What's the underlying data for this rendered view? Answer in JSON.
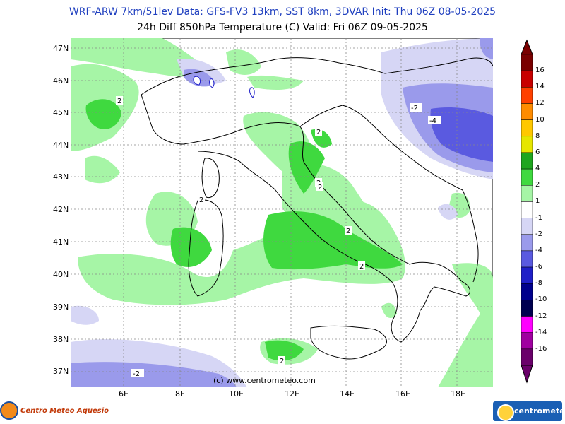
{
  "header": {
    "line1": "WRF-ARW 7km/51lev   Data: GFS-FV3 13km, SST 8km, 3DVAR   Init: Thu 06Z 08-05-2025",
    "line2": "24h Diff 850hPa Temperature (C)  Valid: Fri 06Z 09-05-2025"
  },
  "axes": {
    "lat_labels": [
      "47N",
      "46N",
      "45N",
      "44N",
      "43N",
      "42N",
      "41N",
      "40N",
      "39N",
      "38N",
      "37N"
    ],
    "lon_labels": [
      "6E",
      "8E",
      "10E",
      "12E",
      "14E",
      "16E",
      "18E"
    ]
  },
  "colorbar": {
    "labels": [
      "16",
      "14",
      "12",
      "10",
      "8",
      "6",
      "4",
      "2",
      "1",
      "-1",
      "-2",
      "-4",
      "-6",
      "-8",
      "-10",
      "-12",
      "-14",
      "-16"
    ],
    "colors": [
      "#7a0000",
      "#c80000",
      "#ff4000",
      "#ff8c00",
      "#ffc800",
      "#e6e600",
      "#1fa61f",
      "#3fd93f",
      "#a6f5a6",
      "#ffffff",
      "#d6d6f5",
      "#9a9aeb",
      "#5a5ae0",
      "#1f1fc8",
      "#00008c",
      "#000050",
      "#ff00ff",
      "#a000a0",
      "#6a006a"
    ]
  },
  "contour_labels": [
    "2",
    "2",
    "2",
    "2",
    "2",
    "2",
    "2",
    "2",
    "-2",
    "-4",
    "-2"
  ],
  "copyright": "(c) www.centrometeo.com",
  "brand_left": "Centro Meteo Aquesio",
  "brand_right": "centrometeo",
  "colors": {
    "pos_light": "#a6f5a6",
    "pos_mid": "#3fd93f",
    "neg_light": "#d6d6f5",
    "neg_mid": "#9a9aeb",
    "neg_dark": "#5a5ae0",
    "title_blue": "#1f3fbf"
  }
}
